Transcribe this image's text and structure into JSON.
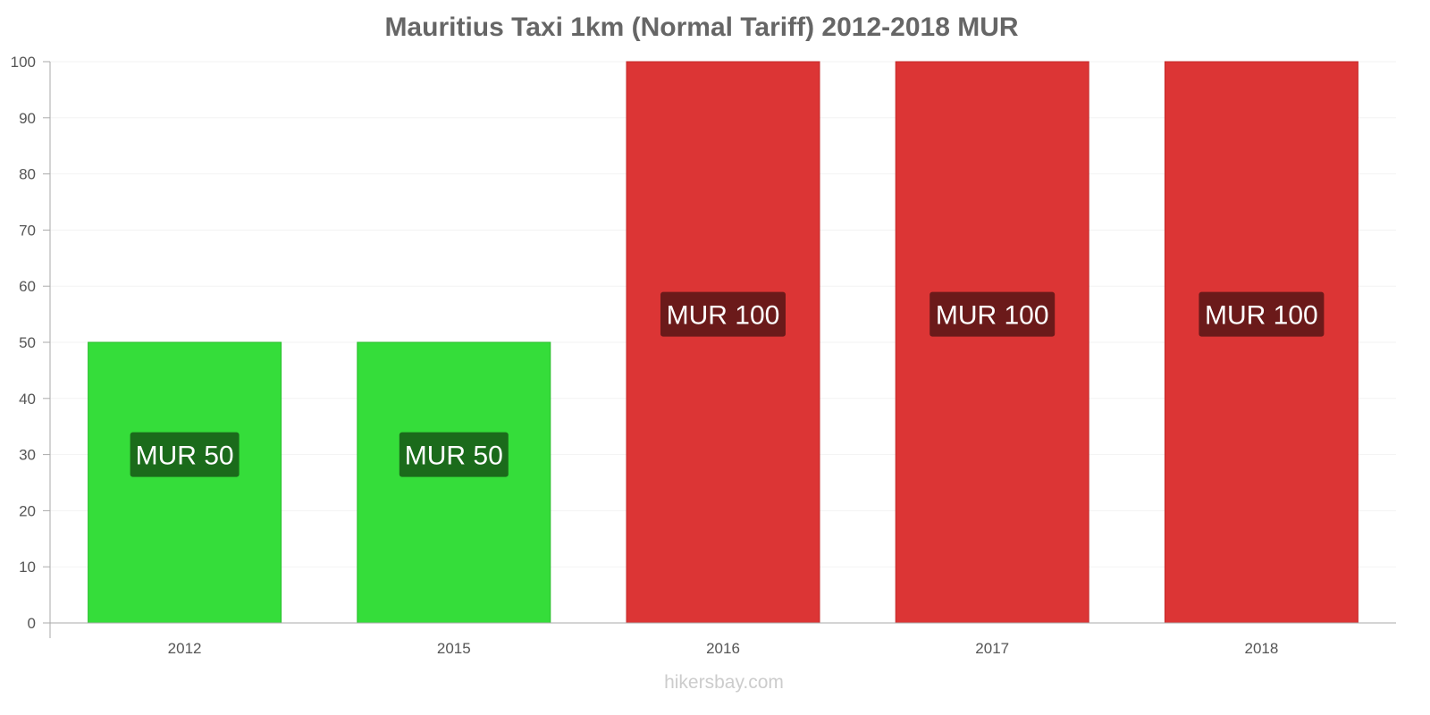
{
  "chart_data": {
    "type": "bar",
    "title": "Mauritius Taxi 1km (Normal Tariff) 2012-2018 MUR",
    "categories": [
      "2012",
      "2015",
      "2016",
      "2017",
      "2018"
    ],
    "values": [
      50,
      50,
      100,
      100,
      100
    ],
    "data_labels": [
      "MUR 50",
      "MUR 50",
      "MUR 100",
      "MUR 100",
      "MUR 100"
    ],
    "ylim": [
      0,
      100
    ],
    "yticks": [
      0,
      10,
      20,
      30,
      40,
      50,
      60,
      70,
      80,
      90,
      100
    ],
    "xlabel": "",
    "ylabel": "",
    "grid": true,
    "colors": {
      "increase": "#dc3535",
      "increase_border": "#c42b2b",
      "increase_label": "#6b1a1a",
      "same_or_low": "#35dd3a",
      "same_or_low_border": "#2cbd2f",
      "same_or_low_label": "#1b6b1b"
    },
    "bar_colors": [
      "green",
      "green",
      "red",
      "red",
      "red"
    ]
  },
  "footer": {
    "credit": "hikersbay.com"
  }
}
